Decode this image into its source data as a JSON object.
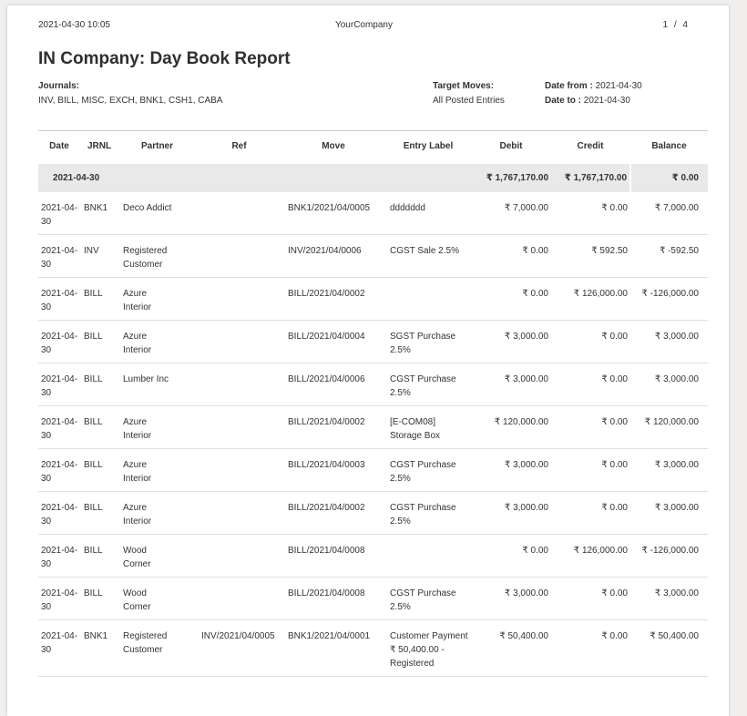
{
  "page_header": {
    "datetime": "2021-04-30 10:05",
    "company": "YourCompany",
    "page_number": "1 / 4"
  },
  "report": {
    "title": "IN Company: Day Book Report",
    "journals_label": "Journals:",
    "journals_value": "INV, BILL, MISC, EXCH, BNK1, CSH1, CABA",
    "target_moves_label": "Target Moves:",
    "target_moves_value": "All Posted Entries",
    "date_from_label": "Date from :",
    "date_from_value": "2021-04-30",
    "date_to_label": "Date to :",
    "date_to_value": "2021-04-30"
  },
  "table": {
    "headers": [
      "Date",
      "JRNL",
      "Partner",
      "Ref",
      "Move",
      "Entry Label",
      "Debit",
      "Credit",
      "Balance"
    ],
    "summary": {
      "date": "2021-04-30",
      "debit": "₹ 1,767,170.00",
      "credit": "₹ 1,767,170.00",
      "balance": "₹ 0.00"
    },
    "rows": [
      {
        "date": "2021-04-30",
        "jrnl": "BNK1",
        "partner": "Deco Addict",
        "ref": "",
        "move": "BNK1/2021/04/0005",
        "label": "ddddddd",
        "debit": "₹ 7,000.00",
        "credit": "₹ 0.00",
        "balance": "₹ 7,000.00"
      },
      {
        "date": "2021-04-30",
        "jrnl": "INV",
        "partner": "Registered Customer",
        "ref": "",
        "move": "INV/2021/04/0006",
        "label": "CGST Sale 2.5%",
        "debit": "₹ 0.00",
        "credit": "₹ 592.50",
        "balance": "₹ -592.50"
      },
      {
        "date": "2021-04-30",
        "jrnl": "BILL",
        "partner": "Azure Interior",
        "ref": "",
        "move": "BILL/2021/04/0002",
        "label": "",
        "debit": "₹ 0.00",
        "credit": "₹ 126,000.00",
        "balance": "₹ -126,000.00"
      },
      {
        "date": "2021-04-30",
        "jrnl": "BILL",
        "partner": "Azure Interior",
        "ref": "",
        "move": "BILL/2021/04/0004",
        "label": "SGST Purchase 2.5%",
        "debit": "₹ 3,000.00",
        "credit": "₹ 0.00",
        "balance": "₹ 3,000.00"
      },
      {
        "date": "2021-04-30",
        "jrnl": "BILL",
        "partner": "Lumber Inc",
        "ref": "",
        "move": "BILL/2021/04/0006",
        "label": "CGST Purchase 2.5%",
        "debit": "₹ 3,000.00",
        "credit": "₹ 0.00",
        "balance": "₹ 3,000.00"
      },
      {
        "date": "2021-04-30",
        "jrnl": "BILL",
        "partner": "Azure Interior",
        "ref": "",
        "move": "BILL/2021/04/0002",
        "label": "[E-COM08] Storage Box",
        "debit": "₹ 120,000.00",
        "credit": "₹ 0.00",
        "balance": "₹ 120,000.00"
      },
      {
        "date": "2021-04-30",
        "jrnl": "BILL",
        "partner": "Azure Interior",
        "ref": "",
        "move": "BILL/2021/04/0003",
        "label": "CGST Purchase 2.5%",
        "debit": "₹ 3,000.00",
        "credit": "₹ 0.00",
        "balance": "₹ 3,000.00"
      },
      {
        "date": "2021-04-30",
        "jrnl": "BILL",
        "partner": "Azure Interior",
        "ref": "",
        "move": "BILL/2021/04/0002",
        "label": "CGST Purchase 2.5%",
        "debit": "₹ 3,000.00",
        "credit": "₹ 0.00",
        "balance": "₹ 3,000.00"
      },
      {
        "date": "2021-04-30",
        "jrnl": "BILL",
        "partner": "Wood Corner",
        "ref": "",
        "move": "BILL/2021/04/0008",
        "label": "",
        "debit": "₹ 0.00",
        "credit": "₹ 126,000.00",
        "balance": "₹ -126,000.00"
      },
      {
        "date": "2021-04-30",
        "jrnl": "BILL",
        "partner": "Wood Corner",
        "ref": "",
        "move": "BILL/2021/04/0008",
        "label": "CGST Purchase 2.5%",
        "debit": "₹ 3,000.00",
        "credit": "₹ 0.00",
        "balance": "₹ 3,000.00"
      },
      {
        "date": "2021-04-30",
        "jrnl": "BNK1",
        "partner": "Registered Customer",
        "ref": "INV/2021/04/0005",
        "move": "BNK1/2021/04/0001",
        "label": "Customer Payment ₹ 50,400.00 - Registered",
        "debit": "₹ 50,400.00",
        "credit": "₹ 0.00",
        "balance": "₹ 50,400.00"
      }
    ]
  }
}
